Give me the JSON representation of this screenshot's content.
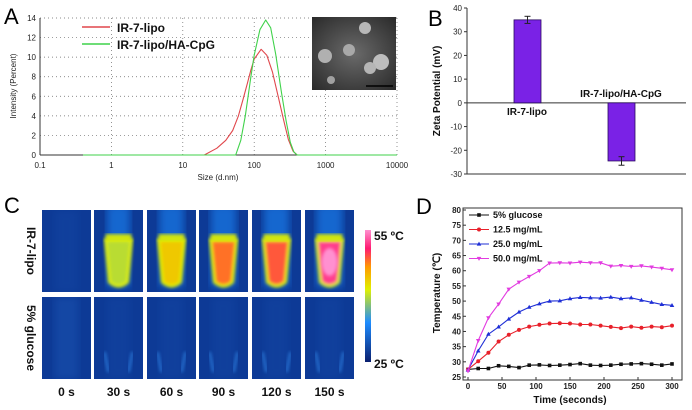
{
  "panel_labels": {
    "a": "A",
    "b": "B",
    "c": "C",
    "d": "D"
  },
  "chart_data": [
    {
      "panel": "A",
      "type": "line",
      "xlabel": "Size (d.nm)",
      "ylabel": "Intensity (Percent)",
      "xscale": "log",
      "xlim": [
        0.1,
        10000
      ],
      "ylim": [
        0,
        14
      ],
      "xticks": [
        "0.1",
        "1",
        "10",
        "100",
        "1000",
        "10000"
      ],
      "yticks": [
        "0",
        "2",
        "4",
        "6",
        "8",
        "10",
        "12",
        "14"
      ],
      "grid": true,
      "legend_position": "top-left",
      "inset": "SEM micrograph with scale bar",
      "series": [
        {
          "name": "IR-7-lipo",
          "color": "#e0474c",
          "points": [
            [
              0.4,
              0
            ],
            [
              20,
              0
            ],
            [
              30,
              0.7
            ],
            [
              40,
              1.5
            ],
            [
              50,
              2.5
            ],
            [
              60,
              4
            ],
            [
              70,
              5.7
            ],
            [
              80,
              7.3
            ],
            [
              90,
              8.7
            ],
            [
              100,
              9.8
            ],
            [
              125,
              10.8
            ],
            [
              150,
              10.2
            ],
            [
              180,
              8.5
            ],
            [
              220,
              5.8
            ],
            [
              260,
              3.5
            ],
            [
              300,
              1.6
            ],
            [
              350,
              0.4
            ],
            [
              400,
              0
            ],
            [
              10000,
              0
            ]
          ]
        },
        {
          "name": "IR-7-lipo/HA-CpG",
          "color": "#3fd24a",
          "points": [
            [
              0.4,
              0
            ],
            [
              55,
              0
            ],
            [
              65,
              1.5
            ],
            [
              75,
              4
            ],
            [
              90,
              8
            ],
            [
              100,
              10.2
            ],
            [
              120,
              12.8
            ],
            [
              145,
              13.8
            ],
            [
              170,
              13
            ],
            [
              200,
              10.3
            ],
            [
              240,
              6.5
            ],
            [
              280,
              3.5
            ],
            [
              320,
              1.3
            ],
            [
              360,
              0.3
            ],
            [
              400,
              0
            ],
            [
              10000,
              0
            ]
          ]
        }
      ]
    },
    {
      "panel": "B",
      "type": "bar",
      "ylabel": "Zeta Potential (mV)",
      "ylim": [
        -30,
        40
      ],
      "yticks": [
        "-30",
        "-20",
        "-10",
        "0",
        "10",
        "20",
        "30",
        "40"
      ],
      "categories": [
        "IR-7-lipo",
        "IR-7-lipo/HA-CpG"
      ],
      "values": [
        35,
        -24.5
      ],
      "errors": [
        1.5,
        1.8
      ],
      "bar_color": "#7a22e6"
    },
    {
      "panel": "C",
      "type": "heatmap",
      "row_labels": [
        "IR-7-lipo",
        "5% glucose"
      ],
      "column_labels": [
        "0 s",
        "30 s",
        "60 s",
        "90 s",
        "120 s",
        "150 s"
      ],
      "colorbar": {
        "max_label": "55 ºC",
        "min_label": "25 ºC",
        "range": [
          25,
          55
        ]
      },
      "relative_heat": [
        [
          0,
          0.5,
          0.7,
          0.85,
          0.88,
          1.0
        ],
        [
          0,
          0.05,
          0.05,
          0.05,
          0.05,
          0.05
        ]
      ]
    },
    {
      "panel": "D",
      "type": "line",
      "xlabel": "Time (seconds)",
      "ylabel": "Temperature (℃)",
      "xlim": [
        0,
        300
      ],
      "ylim": [
        25,
        80
      ],
      "xticks": [
        "0",
        "50",
        "100",
        "150",
        "200",
        "250",
        "300"
      ],
      "yticks": [
        "25",
        "30",
        "35",
        "40",
        "45",
        "50",
        "55",
        "60",
        "65",
        "70",
        "75",
        "80"
      ],
      "legend_position": "top-left",
      "x": [
        0,
        15,
        30,
        45,
        60,
        75,
        90,
        105,
        120,
        135,
        150,
        165,
        180,
        195,
        210,
        225,
        240,
        255,
        270,
        285,
        300
      ],
      "series": [
        {
          "name": "5% glucose",
          "color": "#111111",
          "marker": "square",
          "values": [
            27.5,
            27.8,
            27.8,
            28.7,
            28.5,
            28.1,
            28.9,
            29.0,
            28.8,
            28.9,
            29.1,
            29.4,
            28.9,
            28.8,
            28.9,
            29.2,
            29.3,
            29.4,
            29.2,
            28.9,
            29.3
          ]
        },
        {
          "name": "12.5 mg/mL",
          "color": "#e8202a",
          "marker": "circle",
          "values": [
            27.5,
            30.2,
            33.0,
            36.7,
            38.9,
            40.5,
            41.6,
            42.2,
            42.6,
            42.7,
            42.6,
            42.3,
            42.3,
            41.9,
            41.5,
            41.1,
            41.6,
            41.2,
            41.6,
            41.4,
            41.9
          ]
        },
        {
          "name": "25.0 mg/mL",
          "color": "#1f2fd6",
          "marker": "triangle-up",
          "values": [
            27.3,
            33.6,
            39.1,
            41.5,
            44.1,
            46.4,
            48.0,
            49.1,
            50.0,
            50.1,
            50.8,
            51.2,
            51.1,
            51.0,
            51.3,
            50.8,
            51.1,
            50.3,
            49.6,
            48.9,
            48.6
          ]
        },
        {
          "name": "50.0 mg/mL",
          "color": "#e23be0",
          "marker": "triangle-down",
          "values": [
            27.0,
            37.0,
            44.5,
            49.0,
            53.9,
            56.2,
            58.1,
            60.0,
            62.5,
            62.6,
            62.5,
            62.8,
            62.6,
            62.6,
            61.5,
            61.7,
            61.4,
            61.6,
            61.2,
            60.8,
            60.3
          ]
        }
      ]
    }
  ]
}
